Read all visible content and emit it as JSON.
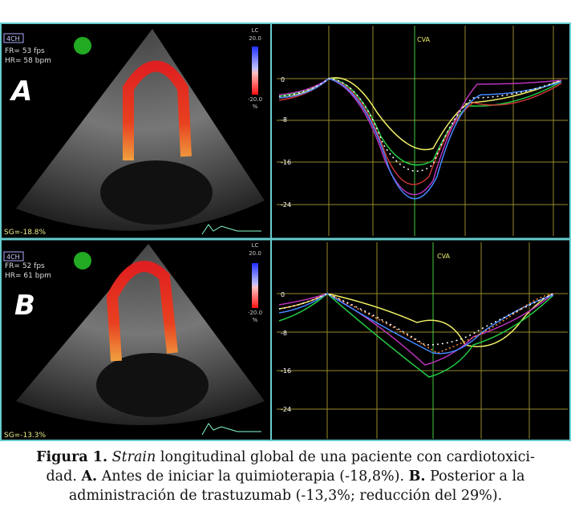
{
  "panel_a": {
    "view": "4CH",
    "fr": "FR= 53 fps",
    "hr": "HR= 58 bpm",
    "letter": "A",
    "scale_title": "LC",
    "scale_max": "20.0",
    "scale_min": "-20.0",
    "scale_unit": "%",
    "sg": "SG=-18.8%",
    "y_labels": [
      "0",
      "-8",
      "-16",
      "-24"
    ],
    "event": "CVA"
  },
  "panel_b": {
    "view": "4CH",
    "fr": "FR= 52 fps",
    "hr": "HR= 61 bpm",
    "letter": "B",
    "scale_title": "LC",
    "scale_max": "20.0",
    "scale_min": "-20.0",
    "scale_unit": "%",
    "sg": "SG=-13.3%",
    "y_labels": [
      "0",
      "-8",
      "-16",
      "-24"
    ],
    "event": "CVA"
  },
  "caption": {
    "label": "Figura 1.",
    "italic": "Strain",
    "line1": "longitudinal global de una paciente con cardiotoxici-",
    "line2_start": "dad.",
    "a_label": "A.",
    "a_text": "Antes de iniciar la quimioterapia (-18,8%).",
    "b_label": "B.",
    "b_text": "Posterior a la",
    "line3": "administración de trastuzumab (-13,3%; reducción del 29%)."
  }
}
